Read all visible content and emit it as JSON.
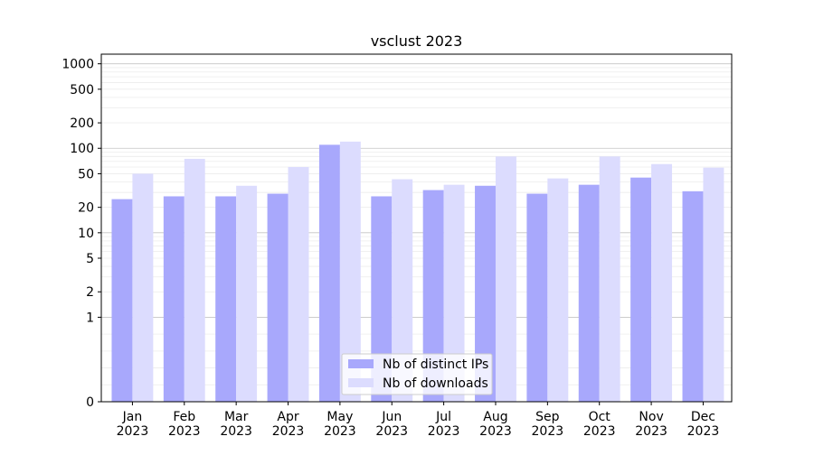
{
  "chart_data": {
    "type": "bar",
    "title": "vsclust 2023",
    "xlabel": "",
    "ylabel": "",
    "y_scale": "symlog",
    "ylim": [
      0,
      1300
    ],
    "grid": true,
    "legend_position": "lower center",
    "categories": [
      [
        "Jan",
        "2023"
      ],
      [
        "Feb",
        "2023"
      ],
      [
        "Mar",
        "2023"
      ],
      [
        "Apr",
        "2023"
      ],
      [
        "May",
        "2023"
      ],
      [
        "Jun",
        "2023"
      ],
      [
        "Jul",
        "2023"
      ],
      [
        "Aug",
        "2023"
      ],
      [
        "Sep",
        "2023"
      ],
      [
        "Oct",
        "2023"
      ],
      [
        "Nov",
        "2023"
      ],
      [
        "Dec",
        "2023"
      ]
    ],
    "y_ticks": [
      {
        "value": 0,
        "label": "0"
      },
      {
        "value": 1,
        "label": "1"
      },
      {
        "value": 2,
        "label": "2"
      },
      {
        "value": 5,
        "label": "5"
      },
      {
        "value": 10,
        "label": "10"
      },
      {
        "value": 20,
        "label": "20"
      },
      {
        "value": 50,
        "label": "50"
      },
      {
        "value": 100,
        "label": "100"
      },
      {
        "value": 200,
        "label": "200"
      },
      {
        "value": 500,
        "label": "500"
      },
      {
        "value": 1000,
        "label": "1000"
      }
    ],
    "series": [
      {
        "name": "Nb of distinct IPs",
        "color": "#a8a8fc",
        "values": [
          25,
          27,
          27,
          29,
          110,
          27,
          32,
          36,
          29,
          37,
          45,
          31
        ]
      },
      {
        "name": "Nb of downloads",
        "color": "#dcdcfe",
        "values": [
          50,
          75,
          36,
          60,
          120,
          43,
          37,
          80,
          44,
          80,
          65,
          59
        ]
      }
    ]
  }
}
